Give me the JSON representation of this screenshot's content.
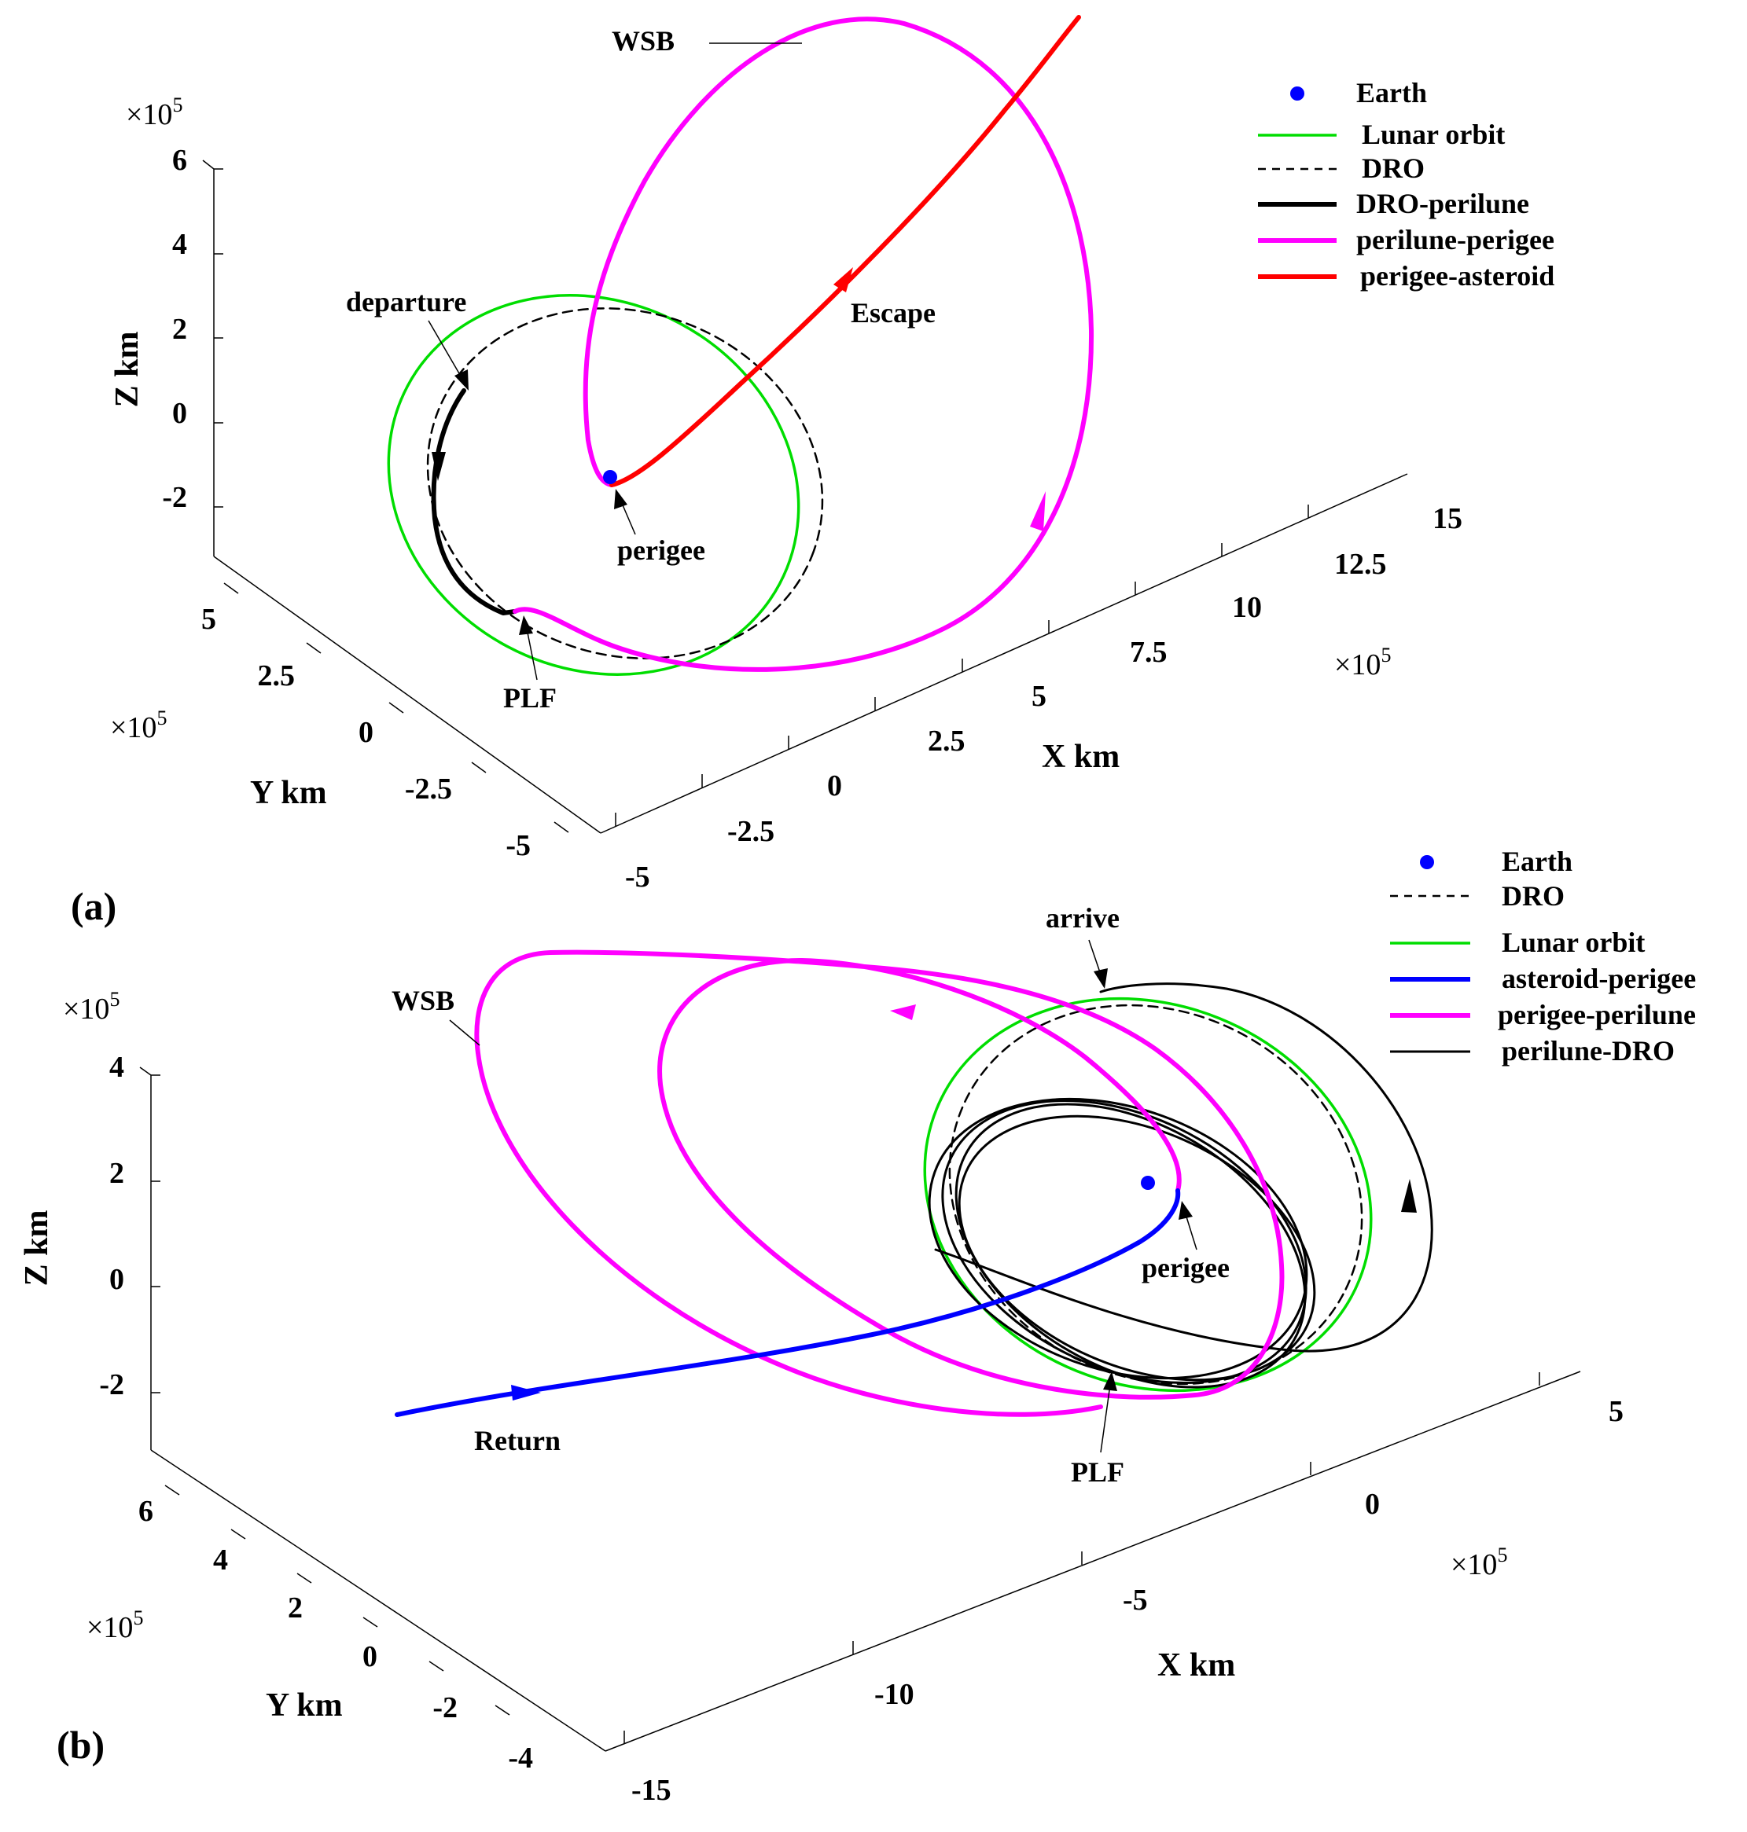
{
  "chart_data": [
    {
      "panel": "(a)",
      "type": "line",
      "dimensions": "3d",
      "xlabel": "X km",
      "ylabel": "Y km",
      "zlabel": "Z km",
      "x_multiplier": "×10",
      "x_multiplier_exp": "5",
      "y_multiplier": "×10",
      "y_multiplier_exp": "5",
      "z_multiplier": "×10",
      "z_multiplier_exp": "5",
      "x_ticks": [
        "-5",
        "-2.5",
        "0",
        "2.5",
        "5",
        "7.5",
        "10",
        "12.5",
        "15"
      ],
      "y_ticks": [
        "-5",
        "-2.5",
        "0",
        "2.5",
        "5"
      ],
      "z_ticks": [
        "-2",
        "0",
        "2",
        "4",
        "6"
      ],
      "xlim": [
        -5,
        15
      ],
      "ylim": [
        -5,
        5
      ],
      "zlim": [
        -3,
        6
      ],
      "grid": false,
      "legend_position": "top-right",
      "legend": [
        {
          "name": "Earth",
          "style": "marker",
          "color": "#0000ff"
        },
        {
          "name": "Lunar orbit",
          "style": "solid",
          "color": "#00dd00"
        },
        {
          "name": "DRO",
          "style": "dashed",
          "color": "#000000"
        },
        {
          "name": "DRO-perilune",
          "style": "solid-thick",
          "color": "#000000"
        },
        {
          "name": "perilune-perigee",
          "style": "solid-thick",
          "color": "#ff00ff"
        },
        {
          "name": "perigee-asteroid",
          "style": "solid-thick",
          "color": "#ff0000"
        }
      ],
      "annotations": [
        "WSB",
        "departure",
        "Escape",
        "perigee",
        "PLF"
      ]
    },
    {
      "panel": "(b)",
      "type": "line",
      "dimensions": "3d",
      "xlabel": "X km",
      "ylabel": "Y km",
      "zlabel": "Z km",
      "x_multiplier": "×10",
      "x_multiplier_exp": "5",
      "y_multiplier": "×10",
      "y_multiplier_exp": "5",
      "z_multiplier": "×10",
      "z_multiplier_exp": "5",
      "x_ticks": [
        "-15",
        "-10",
        "-5",
        "0",
        "5"
      ],
      "y_ticks": [
        "-4",
        "-2",
        "0",
        "2",
        "4",
        "6"
      ],
      "z_ticks": [
        "-2",
        "0",
        "2",
        "4"
      ],
      "xlim": [
        -15,
        5
      ],
      "ylim": [
        -4,
        6
      ],
      "zlim": [
        -3,
        4
      ],
      "grid": false,
      "legend_position": "top-right",
      "legend": [
        {
          "name": "Earth",
          "style": "marker",
          "color": "#0000ff"
        },
        {
          "name": "DRO",
          "style": "dashed",
          "color": "#000000"
        },
        {
          "name": "Lunar orbit",
          "style": "solid",
          "color": "#00dd00"
        },
        {
          "name": "asteroid-perigee",
          "style": "solid-thick",
          "color": "#0000ff"
        },
        {
          "name": "perigee-perilune",
          "style": "solid-thick",
          "color": "#ff00ff"
        },
        {
          "name": "perilune-DRO",
          "style": "solid",
          "color": "#000000"
        }
      ],
      "annotations": [
        "arrive",
        "WSB",
        "perigee",
        "PLF",
        "Return"
      ]
    }
  ]
}
